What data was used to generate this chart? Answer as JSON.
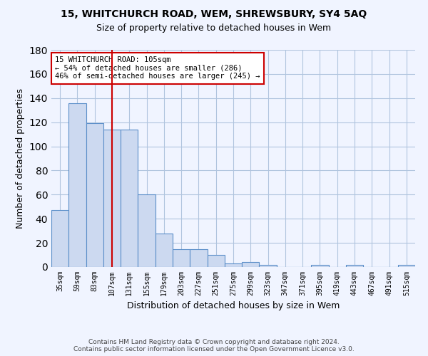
{
  "title": "15, WHITCHURCH ROAD, WEM, SHREWSBURY, SY4 5AQ",
  "subtitle": "Size of property relative to detached houses in Wem",
  "xlabel": "Distribution of detached houses by size in Wem",
  "ylabel": "Number of detached properties",
  "categories": [
    "35sqm",
    "59sqm",
    "83sqm",
    "107sqm",
    "131sqm",
    "155sqm",
    "179sqm",
    "203sqm",
    "227sqm",
    "251sqm",
    "275sqm",
    "299sqm",
    "323sqm",
    "347sqm",
    "371sqm",
    "395sqm",
    "419sqm",
    "443sqm",
    "467sqm",
    "491sqm",
    "515sqm"
  ],
  "values": [
    47,
    136,
    119,
    114,
    114,
    60,
    28,
    15,
    15,
    10,
    3,
    4,
    2,
    0,
    0,
    2,
    0,
    2,
    0,
    0,
    2
  ],
  "bar_color": "#ccd9f0",
  "bar_edge_color": "#5b8fc9",
  "bar_width": 1.0,
  "vline_x": 3,
  "vline_color": "#cc0000",
  "annotation_text": "15 WHITCHURCH ROAD: 105sqm\n← 54% of detached houses are smaller (286)\n46% of semi-detached houses are larger (245) →",
  "annotation_box_color": "#ffffff",
  "annotation_box_edge_color": "#cc0000",
  "ylim": [
    0,
    180
  ],
  "yticks": [
    0,
    20,
    40,
    60,
    80,
    100,
    120,
    140,
    160,
    180
  ],
  "grid_color": "#b0c4de",
  "bg_color": "#f0f4ff",
  "footnote": "Contains HM Land Registry data © Crown copyright and database right 2024.\nContains public sector information licensed under the Open Government Licence v3.0."
}
